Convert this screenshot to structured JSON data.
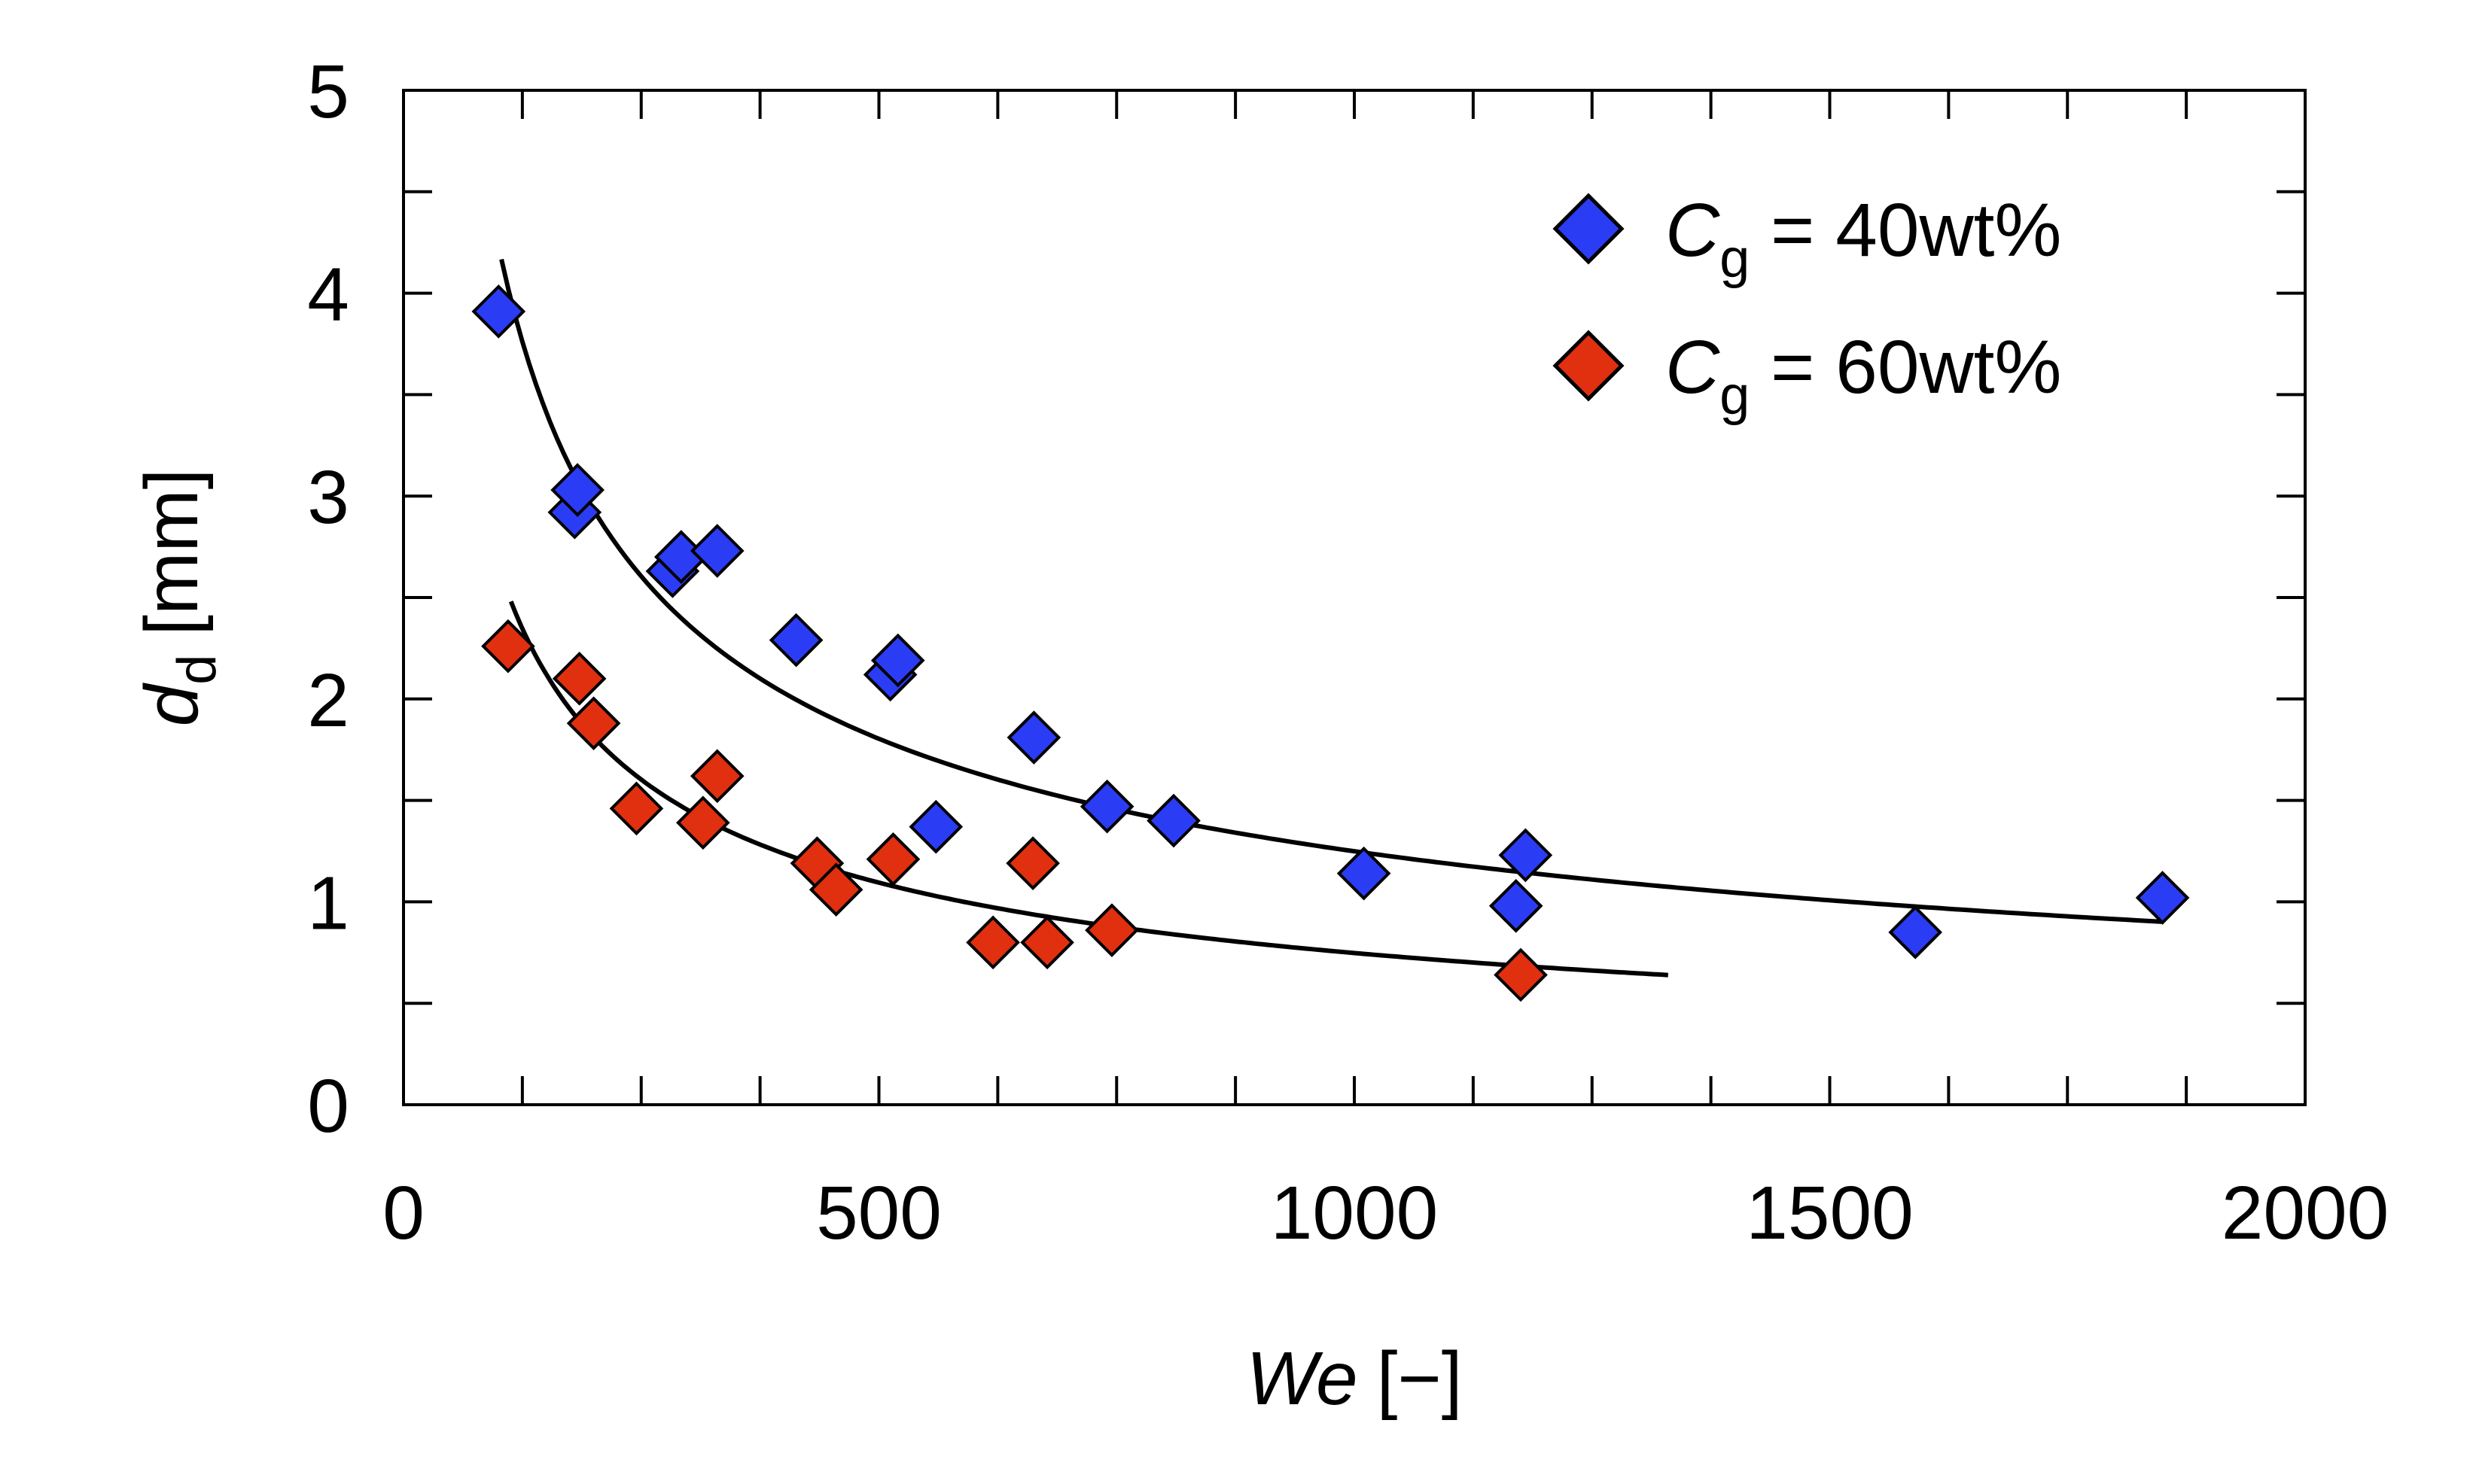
{
  "chart_data": {
    "type": "scatter",
    "title": "",
    "xlabel": {
      "main": "We",
      "unit": "[−]"
    },
    "ylabel": {
      "main": "d",
      "sub": "d",
      "unit": "[mm]"
    },
    "xlim": [
      0,
      2000
    ],
    "ylim": [
      0,
      5
    ],
    "xticks": [
      0,
      500,
      1000,
      1500,
      2000
    ],
    "xtick_labels": [
      "0",
      "500",
      "1000",
      "1500",
      "2000"
    ],
    "yticks": [
      0,
      1,
      2,
      3,
      4,
      5
    ],
    "ytick_labels": [
      "0",
      "1",
      "2",
      "3",
      "4",
      "5"
    ],
    "grid": false,
    "legend_position": "top-right",
    "series": [
      {
        "name": "C_g = 40wt%",
        "legend": {
          "main": "C",
          "sub": "g",
          "rest": " = 40wt%"
        },
        "color": "#2b3cf5",
        "marker": "diamond",
        "x": [
          100,
          180,
          183,
          283,
          292,
          330,
          413,
          512,
          520,
          560,
          663,
          740,
          810,
          1010,
          1170,
          1180,
          1590,
          1850
        ],
        "y": [
          3.91,
          2.92,
          3.03,
          2.63,
          2.7,
          2.73,
          2.29,
          2.12,
          2.19,
          1.37,
          1.81,
          1.47,
          1.4,
          1.14,
          0.98,
          1.23,
          0.85,
          1.02
        ]
      },
      {
        "name": "C_g = 60wt%",
        "legend": {
          "main": "C",
          "sub": "g",
          "rest": " = 60wt%"
        },
        "color": "#e0300f",
        "marker": "diamond",
        "x": [
          110,
          185,
          200,
          245,
          315,
          330,
          435,
          455,
          515,
          620,
          662,
          677,
          745,
          1175
        ],
        "y": [
          2.26,
          2.1,
          1.88,
          1.46,
          1.39,
          1.62,
          1.19,
          1.06,
          1.21,
          0.8,
          1.19,
          0.8,
          0.86,
          0.64
        ]
      }
    ],
    "fits": [
      {
        "name": "fit-40wt",
        "color": "#000000",
        "model": "power",
        "coef": 48.6,
        "exponent": -0.53,
        "x_range": [
          103,
          1850
        ]
      },
      {
        "name": "fit-60wt",
        "color": "#000000",
        "model": "power",
        "coef": 33.4,
        "exponent": -0.55,
        "x_range": [
          113,
          1330
        ]
      }
    ]
  }
}
